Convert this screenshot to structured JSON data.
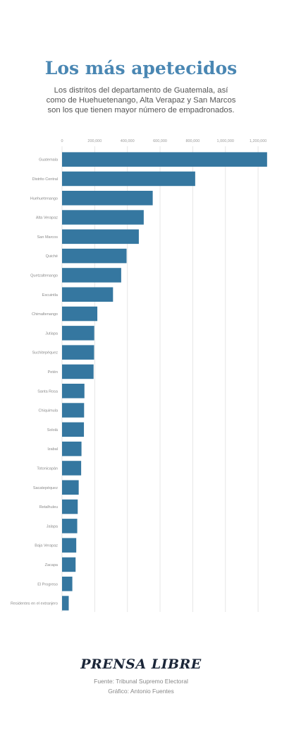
{
  "chart_data": {
    "type": "bar",
    "orientation": "horizontal",
    "title": "Los más apetecidos",
    "subtitle": "Los distritos del departamento de Guatemala, así como de Huehuetenango, Alta Verapaz y San Marcos son los que tienen mayor número de empadronados.",
    "x_ticks": [
      "0",
      "200,000",
      "400,000",
      "600,000",
      "800,000",
      "1,000,000",
      "1,200,000"
    ],
    "xlim": [
      0,
      1260000
    ],
    "grid": true,
    "categories": [
      "Guatemala",
      "Distrito Central",
      "Huehuetenango",
      "Alta Verapaz",
      "San Marcos",
      "Quiché",
      "Quetzaltenango",
      "Escuintla",
      "Chimaltenango",
      "Jutiapa",
      "Suchitepéquez",
      "Petén",
      "Santa Rosa",
      "Chiquimula",
      "Sololá",
      "Izabal",
      "Totonicapán",
      "Sacatepéquez",
      "Retalhuleu",
      "Jalapa",
      "Baja Verapaz",
      "Zacapa",
      "El Progreso",
      "Residentes en el extranjero"
    ],
    "values": [
      1255000,
      815000,
      555000,
      500000,
      470000,
      395000,
      362000,
      312000,
      216000,
      197000,
      196000,
      193000,
      137000,
      135000,
      134000,
      119000,
      117000,
      102000,
      96000,
      93000,
      87000,
      83000,
      63000,
      41000
    ],
    "bar_color": "#3577a0"
  },
  "logo_text": "PRENSA LIBRE",
  "source": "Fuente: Tribunal Supremo Electoral",
  "author": "Gráfico: Antonio Fuentes"
}
